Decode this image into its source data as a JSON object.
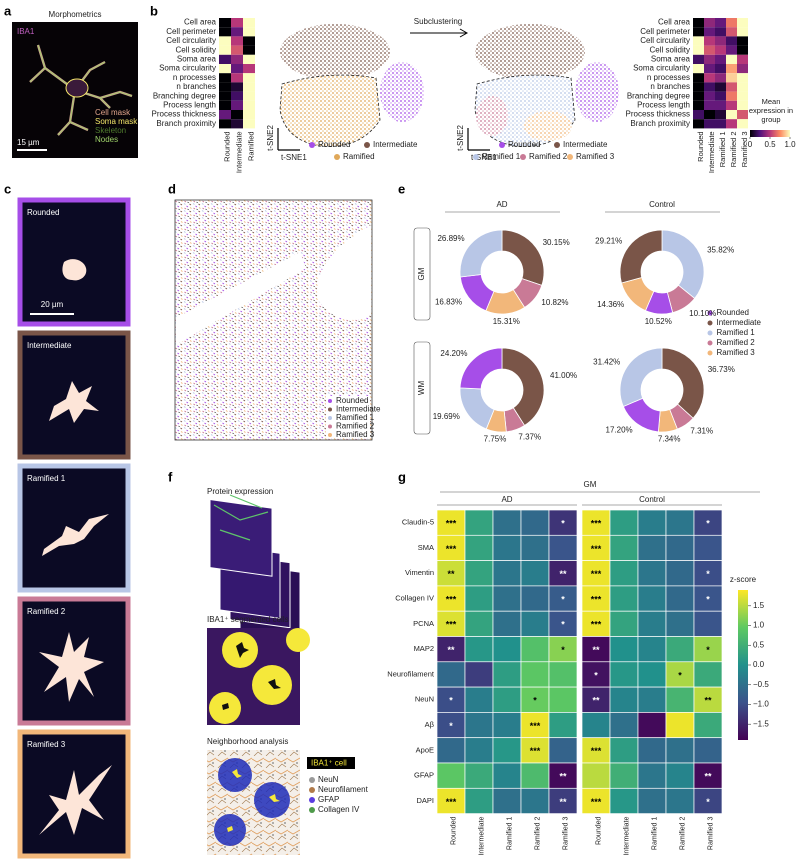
{
  "figure": {
    "a": {
      "label": "a",
      "title": "Morphometrics",
      "stain": "IBA1",
      "scale": "15 µm",
      "legend": [
        {
          "name": "Cell mask",
          "color": "#e0a48c"
        },
        {
          "name": "Soma mask",
          "color": "#f4e66a"
        },
        {
          "name": "Skeleton",
          "color": "#4f7a2e"
        },
        {
          "name": "Nodes",
          "color": "#9fd36a"
        }
      ]
    },
    "b": {
      "label": "b",
      "arrow": "Subclustering",
      "tsne_x": "t-SNE1",
      "tsne_y": "t-SNE2",
      "colorbar_title": "Mean expression in group",
      "legend_left": [
        {
          "name": "Rounded",
          "color": "#a64ee8"
        },
        {
          "name": "Intermediate",
          "color": "#7a5548"
        },
        {
          "name": "Ramified",
          "color": "#e0a85a"
        }
      ],
      "legend_right": [
        {
          "name": "Rounded",
          "color": "#a64ee8"
        },
        {
          "name": "Intermediate",
          "color": "#7a5548"
        },
        {
          "name": "Ramified 1",
          "color": "#b8c6e6"
        },
        {
          "name": "Ramified 2",
          "color": "#c97a96"
        },
        {
          "name": "Ramified 3",
          "color": "#f2b77a"
        }
      ]
    },
    "c": {
      "label": "c",
      "scale": "20 µm",
      "cells": [
        {
          "name": "Rounded",
          "color": "#a64ee8"
        },
        {
          "name": "Intermediate",
          "color": "#7a5548"
        },
        {
          "name": "Ramified 1",
          "color": "#b8c6e6"
        },
        {
          "name": "Ramified 2",
          "color": "#c97a96"
        },
        {
          "name": "Ramified 3",
          "color": "#f2b77a"
        }
      ]
    },
    "d": {
      "label": "d",
      "legend": [
        {
          "name": "Rounded",
          "color": "#a64ee8"
        },
        {
          "name": "Intermediate",
          "color": "#7a5548"
        },
        {
          "name": "Ramified 1",
          "color": "#b8c6e6"
        },
        {
          "name": "Ramified 2",
          "color": "#c97a96"
        },
        {
          "name": "Ramified 3",
          "color": "#f2b77a"
        }
      ]
    },
    "e": {
      "label": "e",
      "columns": [
        "AD",
        "Control"
      ],
      "rows": [
        "GM",
        "WM"
      ],
      "legend": [
        {
          "name": "Rounded",
          "color": "#a64ee8"
        },
        {
          "name": "Intermediate",
          "color": "#7a5548"
        },
        {
          "name": "Ramified 1",
          "color": "#b8c6e6"
        },
        {
          "name": "Ramified 2",
          "color": "#c97a96"
        },
        {
          "name": "Ramified 3",
          "color": "#f2b77a"
        }
      ]
    },
    "f": {
      "label": "f",
      "titles": [
        "Protein expression",
        "IBA1⁺ segmented cells",
        "Neighborhood analysis"
      ],
      "legend": [
        {
          "name": "IBA1⁺ cell",
          "color": "#f5e83a"
        },
        {
          "name": "NeuN",
          "color": "#9a9a9a"
        },
        {
          "name": "Neurofilament",
          "color": "#b07a4a"
        },
        {
          "name": "GFAP",
          "color": "#5a3de0"
        },
        {
          "name": "Collagen IV",
          "color": "#4e9a4a"
        }
      ]
    },
    "g": {
      "label": "g",
      "title": "GM"
    }
  },
  "chart_data": [
    {
      "type": "heatmap",
      "colormap": "magma",
      "zlim": [
        0,
        1
      ],
      "rows": [
        "Cell area",
        "Cell perimeter",
        "Cell circularity",
        "Cell solidity",
        "Soma area",
        "Soma circularity",
        "n processes",
        "n branches",
        "Branching degree",
        "Process length",
        "Process thickness",
        "Branch proximity"
      ],
      "columns": [
        "Rounded",
        "Intermediate",
        "Ramified"
      ],
      "values": [
        [
          0,
          0.5,
          1
        ],
        [
          0,
          0.3,
          1
        ],
        [
          1,
          0.5,
          0
        ],
        [
          1,
          0.6,
          0
        ],
        [
          0.2,
          0.4,
          1
        ],
        [
          1,
          0.3,
          0.5
        ],
        [
          0,
          0.5,
          1
        ],
        [
          0,
          0.1,
          1
        ],
        [
          0,
          0.2,
          1
        ],
        [
          0,
          0.3,
          1
        ],
        [
          0.3,
          0,
          1
        ],
        [
          0,
          0.1,
          1
        ]
      ]
    },
    {
      "type": "heatmap",
      "colormap": "magma",
      "zlim": [
        0,
        1
      ],
      "zticks": [
        0,
        0.5,
        {
          "value": 1,
          "label": "1.0"
        }
      ],
      "rows": [
        "Cell area",
        "Cell perimeter",
        "Cell circularity",
        "Cell solidity",
        "Soma area",
        "Soma circularity",
        "n processes",
        "n branches",
        "Branching degree",
        "Process length",
        "Process thickness",
        "Branch proximity"
      ],
      "columns": [
        "Rounded",
        "Intermediate",
        "Ramified 1",
        "Ramified 2",
        "Ramified 3"
      ],
      "values": [
        [
          0,
          0.4,
          0.3,
          0.7,
          1
        ],
        [
          0,
          0.3,
          0.2,
          0.6,
          1
        ],
        [
          1,
          0.5,
          0.4,
          0.2,
          0
        ],
        [
          1,
          0.6,
          0.5,
          0.3,
          0
        ],
        [
          0.2,
          0.4,
          0.3,
          1,
          0.5
        ],
        [
          1,
          0.3,
          0.2,
          0.8,
          0.4
        ],
        [
          0,
          0.5,
          0.4,
          0.9,
          1
        ],
        [
          0,
          0.2,
          0.1,
          0.6,
          1
        ],
        [
          0,
          0.3,
          0.2,
          0.7,
          1
        ],
        [
          0,
          0.3,
          0.3,
          0.5,
          1
        ],
        [
          0.2,
          0,
          0.1,
          1,
          0.6
        ],
        [
          0,
          0.2,
          0.2,
          0.5,
          1
        ]
      ]
    },
    {
      "type": "donut",
      "categories": [
        "Intermediate",
        "Ramified 2",
        "Ramified 3",
        "Rounded",
        "Ramified 1"
      ],
      "values": [
        30.15,
        10.82,
        15.31,
        16.83,
        26.89
      ],
      "value_labels": [
        "30.15%",
        "10.82%",
        "15.31%",
        "16.83%",
        "26.89%"
      ],
      "colors": [
        "#7a5548",
        "#c97a96",
        "#f2b77a",
        "#a64ee8",
        "#b8c6e6"
      ]
    },
    {
      "type": "donut",
      "categories": [
        "Ramified 1",
        "Ramified 2",
        "Rounded",
        "Ramified 3",
        "Intermediate"
      ],
      "values": [
        35.82,
        10.1,
        10.52,
        14.36,
        29.21
      ],
      "value_labels": [
        "35.82%",
        "10.10%",
        "10.52%",
        "14.36%",
        "29.21%"
      ],
      "colors": [
        "#b8c6e6",
        "#c97a96",
        "#a64ee8",
        "#f2b77a",
        "#7a5548"
      ]
    },
    {
      "type": "donut",
      "categories": [
        "Intermediate",
        "Ramified 2",
        "Ramified 3",
        "Ramified 1",
        "Rounded"
      ],
      "values": [
        41.0,
        7.37,
        7.75,
        19.69,
        24.2
      ],
      "value_labels": [
        "41.00%",
        "7.37%",
        "7.75%",
        "19.69%",
        "24.20%"
      ],
      "colors": [
        "#7a5548",
        "#c97a96",
        "#f2b77a",
        "#b8c6e6",
        "#a64ee8"
      ]
    },
    {
      "type": "donut",
      "categories": [
        "Intermediate",
        "Ramified 2",
        "Ramified 3",
        "Rounded",
        "Ramified 1"
      ],
      "values": [
        36.73,
        7.31,
        7.34,
        17.2,
        31.42
      ],
      "value_labels": [
        "36.73%",
        "7.31%",
        "7.34%",
        "17.20%",
        "31.42%"
      ],
      "colors": [
        "#7a5548",
        "#c97a96",
        "#f2b77a",
        "#a64ee8",
        "#b8c6e6"
      ]
    },
    {
      "type": "heatmap",
      "title": "AD",
      "colormap": "viridis",
      "zlim": [
        -1.9,
        1.9
      ],
      "rows": [
        "Claudin-5",
        "SMA",
        "Vimentin",
        "Collagen IV",
        "PCNA",
        "MAP2",
        "Neurofilament",
        "NeuN",
        "Aβ",
        "ApoE",
        "GFAP",
        "DAPI"
      ],
      "columns": [
        "Rounded",
        "Intermediate",
        "Ramified 1",
        "Ramified 2",
        "Ramified 3"
      ],
      "values": [
        [
          1.8,
          0.3,
          -0.5,
          -0.6,
          -1.3
        ],
        [
          1.8,
          0.3,
          -0.4,
          -0.5,
          -0.9
        ],
        [
          1.6,
          0.3,
          -0.4,
          -0.3,
          -1.5
        ],
        [
          1.8,
          0.2,
          -0.5,
          -0.6,
          -0.8
        ],
        [
          1.7,
          0.3,
          -0.5,
          -0.3,
          -0.9
        ],
        [
          -1.5,
          0.1,
          0.0,
          0.8,
          1.2
        ],
        [
          -0.6,
          -1.2,
          0.2,
          0.9,
          0.8
        ],
        [
          -1.0,
          -0.3,
          0.2,
          1.0,
          0.9
        ],
        [
          -1.0,
          -0.4,
          -0.3,
          1.8,
          0.2
        ],
        [
          -0.6,
          -0.3,
          0.1,
          1.7,
          -0.7
        ],
        [
          0.9,
          0.4,
          -0.2,
          0.7,
          -1.8
        ],
        [
          1.8,
          0.2,
          -0.5,
          -0.4,
          -1.2
        ]
      ],
      "annotations": [
        [
          "***",
          null,
          null,
          null,
          "*"
        ],
        [
          "***",
          null,
          null,
          null,
          null
        ],
        [
          "**",
          null,
          null,
          null,
          "**"
        ],
        [
          "***",
          null,
          null,
          null,
          "*"
        ],
        [
          "***",
          null,
          null,
          null,
          "*"
        ],
        [
          "**",
          null,
          null,
          null,
          "*"
        ],
        [
          null,
          null,
          null,
          null,
          null
        ],
        [
          "*",
          null,
          null,
          "*",
          null
        ],
        [
          "*",
          null,
          null,
          "***",
          null
        ],
        [
          null,
          null,
          null,
          "***",
          null
        ],
        [
          null,
          null,
          null,
          null,
          "**"
        ],
        [
          "***",
          null,
          null,
          null,
          "**"
        ]
      ]
    },
    {
      "type": "heatmap",
      "title": "Control",
      "colormap": "viridis",
      "zlim": [
        -1.9,
        1.9
      ],
      "colorbar_title": "z-score",
      "zticks": [
        1.5,
        {
          "value": 1,
          "label": "1.0"
        },
        0.5,
        {
          "value": 0,
          "label": "0.0"
        },
        {
          "value": -0.5,
          "label": "−0.5"
        },
        {
          "value": -1,
          "label": "−1.0"
        },
        {
          "value": -1.5,
          "label": "−1.5"
        }
      ],
      "columns": [
        "Rounded",
        "Intermediate",
        "Ramified 1",
        "Ramified 2",
        "Ramified 3"
      ],
      "values": [
        [
          1.8,
          0.2,
          -0.3,
          -0.4,
          -1.1
        ],
        [
          1.8,
          0.3,
          -0.5,
          -0.6,
          -0.9
        ],
        [
          1.8,
          0.2,
          -0.4,
          -0.6,
          -1.0
        ],
        [
          1.8,
          0.2,
          -0.3,
          -0.6,
          -0.9
        ],
        [
          1.8,
          0.3,
          -0.3,
          -0.5,
          -0.9
        ],
        [
          -1.8,
          0.0,
          -0.2,
          0.4,
          1.3
        ],
        [
          -1.7,
          0.1,
          0.0,
          1.4,
          0.4
        ],
        [
          -1.5,
          -0.2,
          -0.3,
          0.6,
          1.5
        ],
        [
          -0.2,
          -0.5,
          -1.8,
          1.8,
          0.4
        ],
        [
          1.7,
          0.2,
          -0.6,
          -0.5,
          -0.7
        ],
        [
          1.5,
          0.5,
          -0.4,
          -0.2,
          -1.8
        ],
        [
          1.8,
          0.1,
          -0.5,
          -0.4,
          -1.1
        ]
      ],
      "annotations": [
        [
          "***",
          null,
          null,
          null,
          "*"
        ],
        [
          "***",
          null,
          null,
          null,
          null
        ],
        [
          "***",
          null,
          null,
          null,
          "*"
        ],
        [
          "***",
          null,
          null,
          null,
          "*"
        ],
        [
          "***",
          null,
          null,
          null,
          null
        ],
        [
          "**",
          null,
          null,
          null,
          "*"
        ],
        [
          "*",
          null,
          null,
          "*",
          null
        ],
        [
          "**",
          null,
          null,
          null,
          "**"
        ],
        [
          null,
          null,
          null,
          null,
          null
        ],
        [
          "***",
          null,
          null,
          null,
          null
        ],
        [
          null,
          null,
          null,
          null,
          "**"
        ],
        [
          "***",
          null,
          null,
          null,
          "*"
        ]
      ]
    }
  ]
}
